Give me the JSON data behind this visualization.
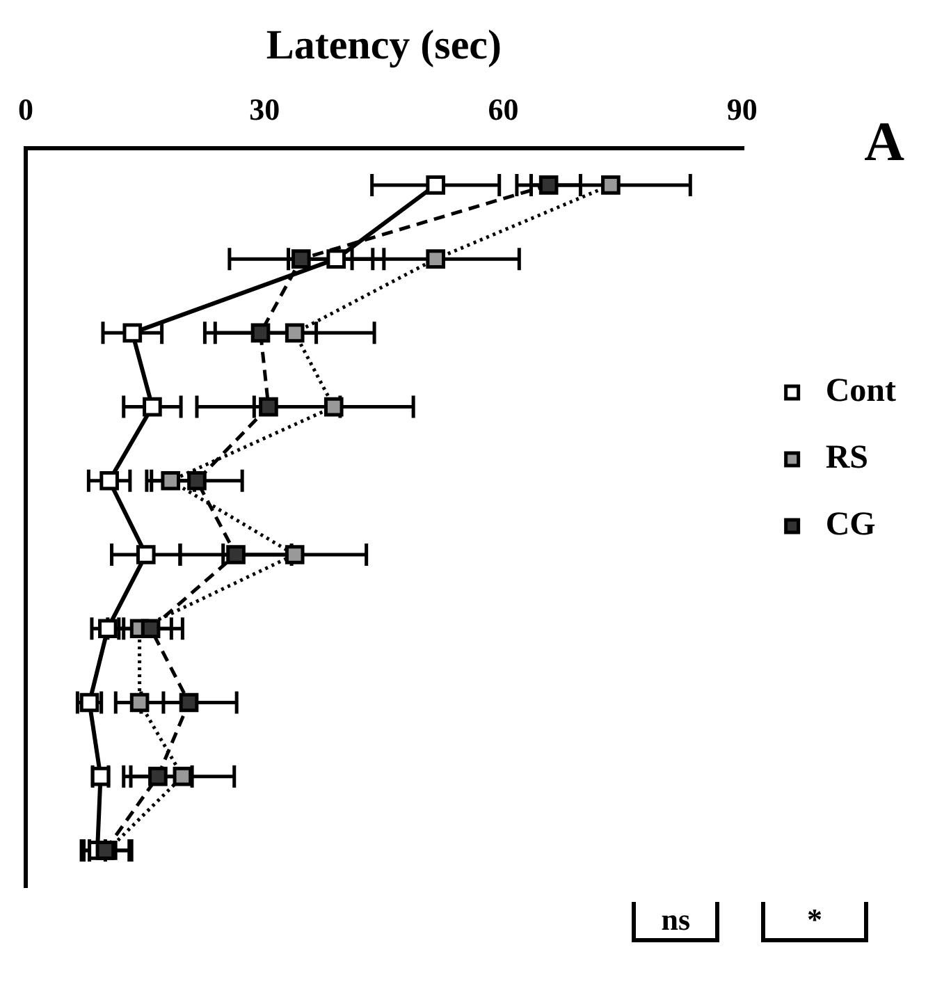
{
  "chart_data": {
    "type": "line",
    "orientation": "horizontal",
    "xlabel": "Latency (sec)",
    "categories": [
      null,
      null,
      null,
      null,
      null,
      null,
      null,
      null,
      null,
      null
    ],
    "xlim": [
      0,
      90
    ],
    "xticks": [
      0,
      30,
      60,
      90
    ],
    "tick_labels": "x",
    "grid": false,
    "legend": "right",
    "marker": "square",
    "annotations": [
      "A",
      "ns",
      "*"
    ],
    "series": [
      {
        "name": "Cont",
        "color": "#ffffff",
        "line_style": "solid",
        "values": [
          51.5,
          39,
          13.4,
          15.9,
          10.5,
          15.1,
          10.3,
          8,
          9.4,
          9
        ],
        "errors": [
          8,
          6,
          3.7,
          3.6,
          2.6,
          4.3,
          2,
          1.5,
          1,
          1
        ]
      },
      {
        "name": "RS",
        "color": "#999999",
        "line_style": "dotted",
        "values": [
          73.5,
          51.5,
          33.8,
          38.7,
          18.2,
          33.8,
          14.3,
          14.3,
          19.7,
          10.3
        ],
        "errors": [
          10,
          10.5,
          10,
          10,
          3,
          9,
          4,
          3,
          6.5,
          3
        ]
      },
      {
        "name": "CG",
        "color": "#333333",
        "line_style": "dashed",
        "values": [
          65.7,
          34.6,
          29.5,
          30.5,
          21.5,
          26.4,
          15.7,
          20.5,
          16.6,
          10
        ],
        "errors": [
          4,
          9,
          7,
          9,
          5.7,
          7,
          4,
          6,
          4.3,
          3
        ]
      }
    ]
  }
}
